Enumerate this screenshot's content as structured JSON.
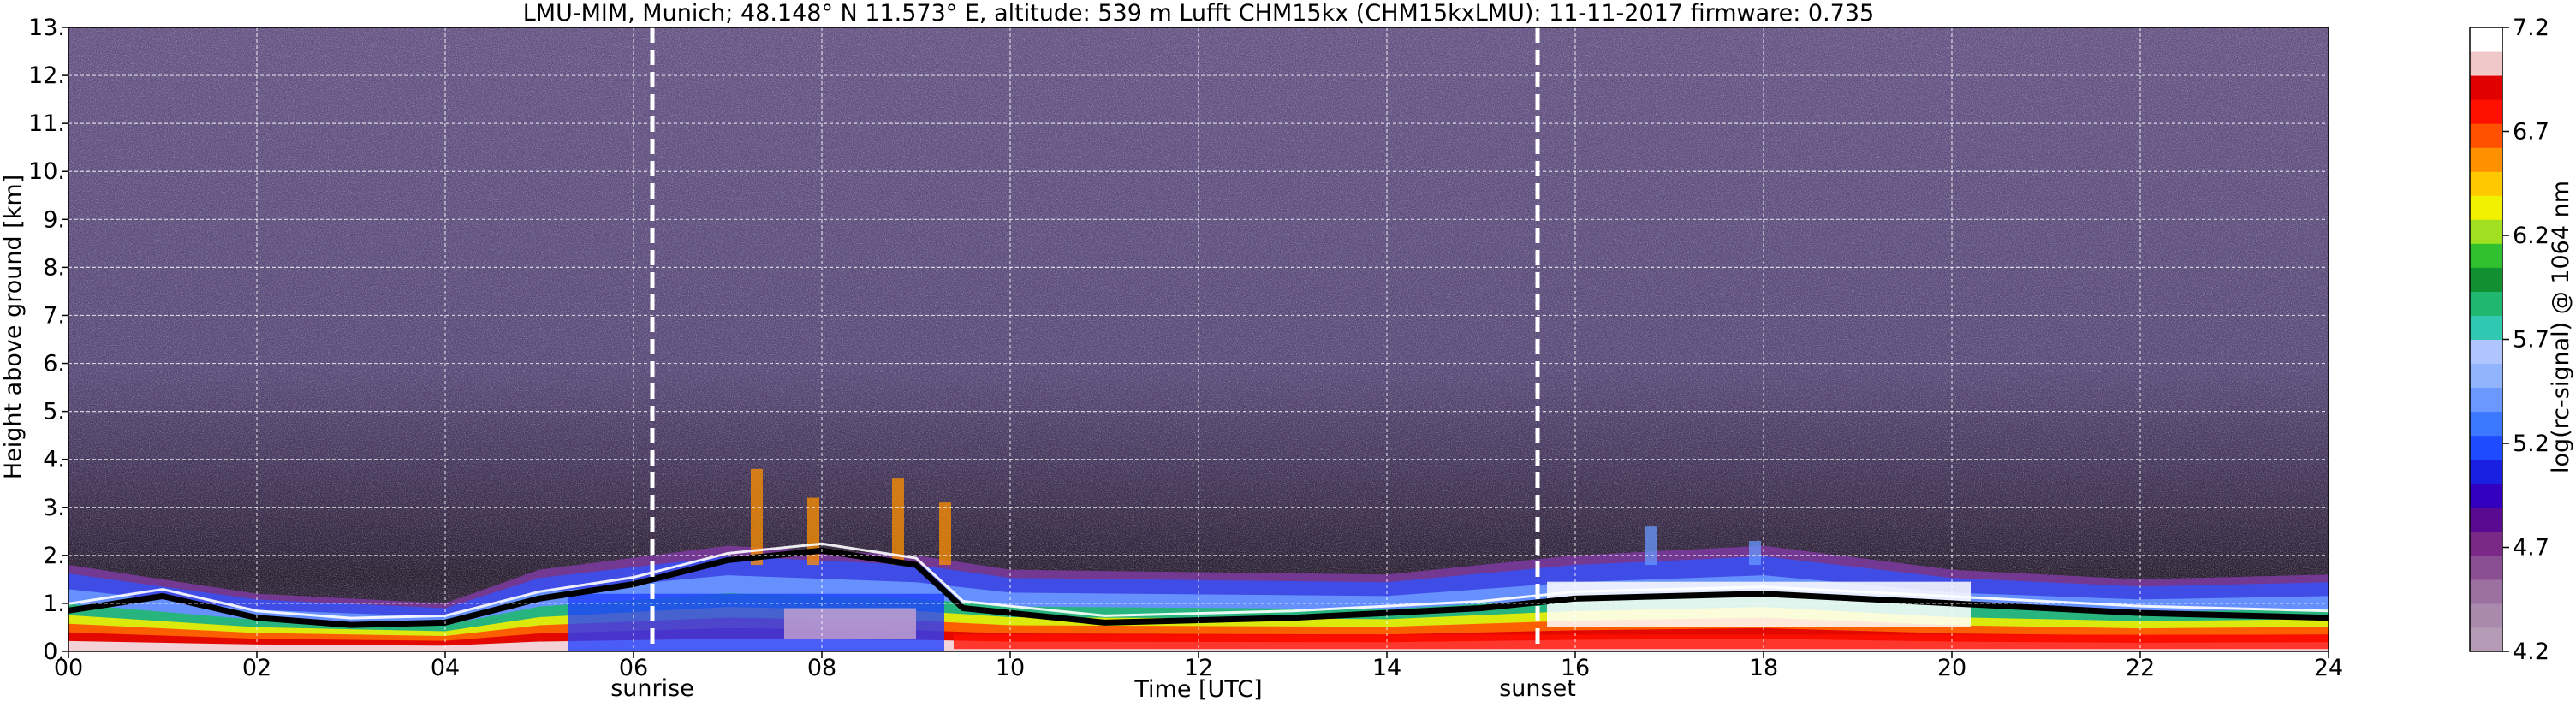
{
  "chart_data": {
    "type": "heatmap",
    "title": "LMU-MIM, Munich; 48.148° N 11.573° E, altitude: 539 m    Lufft CHM15kx (CHM15kxLMU): 11-11-2017    firmware: 0.735",
    "xlabel": "Time [UTC]",
    "ylabel": "Height above ground [km]",
    "xlim": [
      0,
      24
    ],
    "ylim": [
      0,
      13
    ],
    "x_ticks": [
      0,
      2,
      4,
      6,
      8,
      10,
      12,
      14,
      16,
      18,
      20,
      22,
      24
    ],
    "x_tick_labels": [
      "00",
      "02",
      "04",
      "06",
      "08",
      "10",
      "12",
      "14",
      "16",
      "18",
      "20",
      "22",
      "24"
    ],
    "y_ticks": [
      0,
      1,
      2,
      3,
      4,
      5,
      6,
      7,
      8,
      9,
      10,
      11,
      12,
      13
    ],
    "y_tick_labels": [
      "0.",
      "1.",
      "2.",
      "3.",
      "4.",
      "5.",
      "6.",
      "7.",
      "8.",
      "9.",
      "10.",
      "11.",
      "12.",
      "13."
    ],
    "grid": true,
    "colorbar": {
      "label": "log(rc-signal) @ 1064 nm",
      "range": [
        4.2,
        7.2
      ],
      "ticks": [
        4.2,
        4.7,
        5.2,
        5.7,
        6.2,
        6.7,
        7.2
      ],
      "tick_labels": [
        "4.2",
        "4.7",
        "5.2",
        "5.7",
        "6.2",
        "6.7",
        "7.2"
      ],
      "colors": [
        "#b59bb5",
        "#a98aad",
        "#9c70a0",
        "#8a4f92",
        "#7a2a86",
        "#5a0a90",
        "#3300c0",
        "#1a20e0",
        "#1f4bff",
        "#3a78ff",
        "#6a98ff",
        "#92b4ff",
        "#b0c4ff",
        "#30c8b0",
        "#20b870",
        "#109030",
        "#30c030",
        "#a0e020",
        "#f0f000",
        "#ffc800",
        "#ff9000",
        "#ff5000",
        "#ff1000",
        "#e00000",
        "#f0c8c8",
        "#ffffff"
      ]
    },
    "annotations": [
      {
        "text": "sunrise",
        "x": 6.2
      },
      {
        "text": "sunset",
        "x": 15.6
      }
    ],
    "features": {
      "boundary_layer_black_line": [
        [
          0,
          0.85
        ],
        [
          1,
          1.15
        ],
        [
          2,
          0.7
        ],
        [
          3,
          0.55
        ],
        [
          4,
          0.6
        ],
        [
          5,
          1.1
        ],
        [
          6,
          1.4
        ],
        [
          7,
          1.9
        ],
        [
          8,
          2.1
        ],
        [
          9,
          1.8
        ],
        [
          9.5,
          0.9
        ],
        [
          11,
          0.6
        ],
        [
          13,
          0.7
        ],
        [
          15,
          0.9
        ],
        [
          16,
          1.1
        ],
        [
          18,
          1.2
        ],
        [
          20,
          1.0
        ],
        [
          22,
          0.8
        ],
        [
          24,
          0.7
        ]
      ],
      "aerosol_layer_top": [
        [
          0,
          1.8
        ],
        [
          2,
          1.2
        ],
        [
          4,
          1.0
        ],
        [
          5,
          1.7
        ],
        [
          7,
          2.2
        ],
        [
          9,
          2.0
        ],
        [
          10,
          1.7
        ],
        [
          14,
          1.6
        ],
        [
          16,
          2.0
        ],
        [
          18,
          2.2
        ],
        [
          20,
          1.7
        ],
        [
          22,
          1.5
        ],
        [
          24,
          1.6
        ]
      ]
    }
  }
}
